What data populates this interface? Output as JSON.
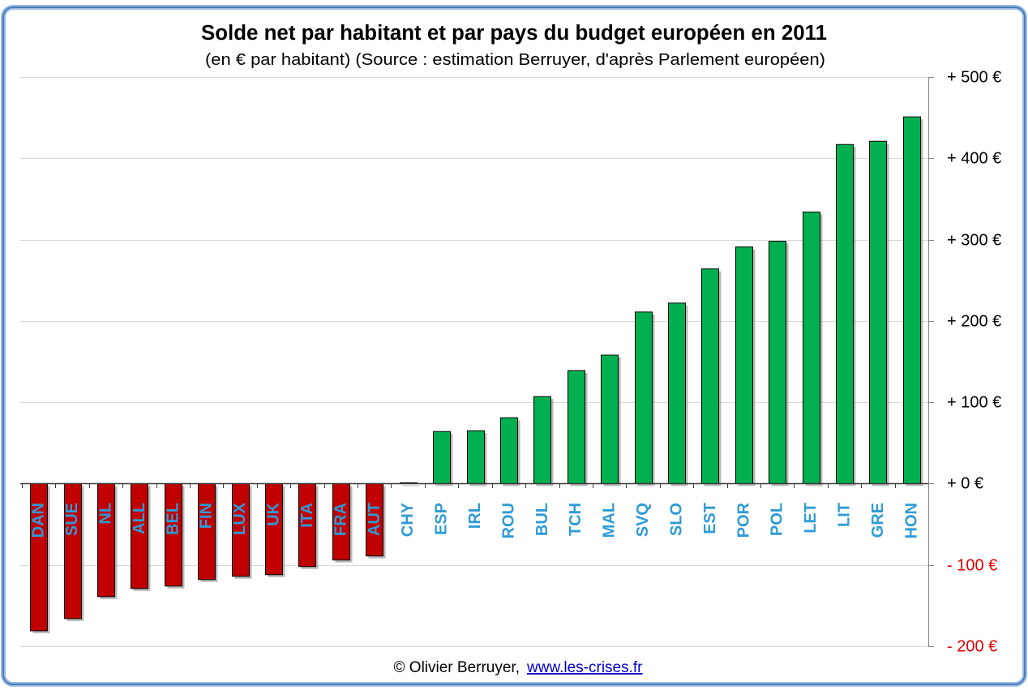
{
  "chart_data": {
    "type": "bar",
    "title": "Solde net par habitant et par pays du budget européen en 2011",
    "subtitle": "(en € par habitant) (Source : estimation Berruyer, d'après Parlement européen)",
    "categories": [
      "DAN",
      "SUE",
      "NL",
      "ALL",
      "BEL",
      "FIN",
      "LUX",
      "UK",
      "ITA",
      "FRA",
      "AUT",
      "CHY",
      "ESP",
      "IRL",
      "ROU",
      "BUL",
      "TCH",
      "MAL",
      "SVQ",
      "SLO",
      "EST",
      "POR",
      "POL",
      "LET",
      "LIT",
      "GRE",
      "HON"
    ],
    "values": [
      -181,
      -166,
      -139,
      -129,
      -126,
      -118,
      -114,
      -112,
      -102,
      -94,
      -89,
      1,
      64,
      65,
      81,
      107,
      139,
      158,
      211,
      222,
      264,
      291,
      298,
      334,
      417,
      421,
      451
    ],
    "ylim": [
      -200,
      500
    ],
    "yticks": [
      500,
      400,
      300,
      200,
      100,
      0,
      -100,
      -200
    ],
    "ytick_labels": [
      "+ 500 €",
      "+ 400 €",
      "+ 300 €",
      "+ 200 €",
      "+ 100 €",
      "+ 0 €",
      "- 100 €",
      "- 200 €"
    ],
    "grid": true,
    "colors": {
      "positive": "#00B050",
      "negative": "#C00000",
      "category_label": "#2E9BD6",
      "positive_tick_label": "#000000",
      "negative_tick_label": "#E00000"
    }
  },
  "footer": {
    "credit": "© Olivier Berruyer,",
    "link_text": "www.les-crises.fr",
    "link_color": "#0000CC"
  }
}
